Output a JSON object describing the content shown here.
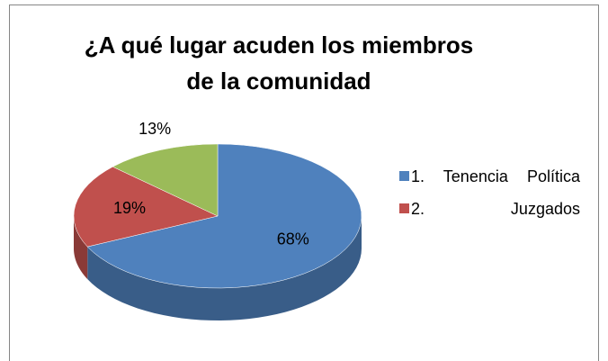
{
  "chart_data": {
    "type": "pie",
    "title": "¿A qué lugar acuden los miembros de la comunidad",
    "categories": [
      "1. Tenencia Política",
      "2. Juzgados",
      null
    ],
    "values": [
      68,
      19,
      13
    ],
    "value_labels": [
      "68%",
      "19%",
      "13%"
    ],
    "colors": [
      "#4f81bd",
      "#c0504d",
      "#9bbb59"
    ]
  }
}
